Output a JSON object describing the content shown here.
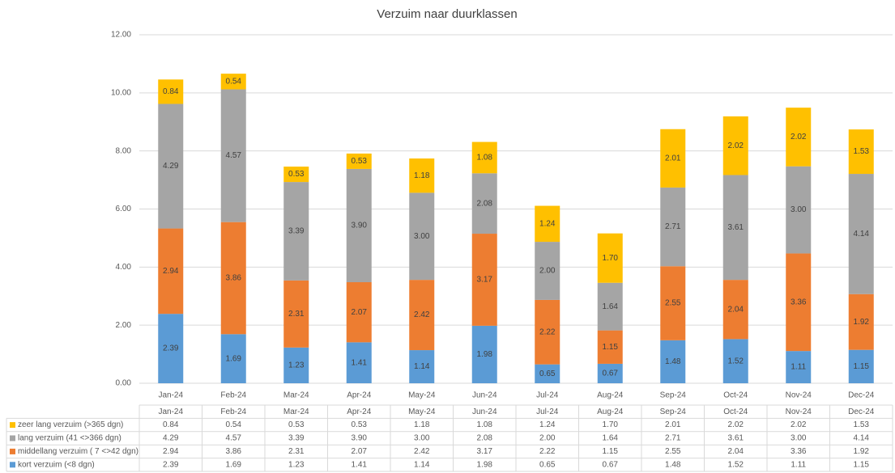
{
  "chart_data": {
    "type": "stacked_bar",
    "title": "Verzuim naar duurklassen",
    "categories": [
      "Jan-24",
      "Feb-24",
      "Mar-24",
      "Apr-24",
      "May-24",
      "Jun-24",
      "Jul-24",
      "Aug-24",
      "Sep-24",
      "Oct-24",
      "Nov-24",
      "Dec-24"
    ],
    "series": [
      {
        "name": "kort verzuim (<8 dgn)",
        "color": "#5b9bd5",
        "values": [
          2.39,
          1.69,
          1.23,
          1.41,
          1.14,
          1.98,
          0.65,
          0.67,
          1.48,
          1.52,
          1.11,
          1.15
        ],
        "value_labels": [
          "2.39",
          "1.69",
          "1.23",
          "1.41",
          "1.14",
          "1.98",
          "0.65",
          "0.67",
          "1.48",
          "1.52",
          "1.11",
          "1.15"
        ]
      },
      {
        "name": "middellang verzuim ( 7 <>42 dgn)",
        "color": "#ed7d31",
        "values": [
          2.94,
          3.86,
          2.31,
          2.07,
          2.42,
          3.17,
          2.22,
          1.15,
          2.55,
          2.04,
          3.36,
          1.92
        ],
        "value_labels": [
          "2.94",
          "3.86",
          "2.31",
          "2.07",
          "2.42",
          "3.17",
          "2.22",
          "1.15",
          "2.55",
          "2.04",
          "3.36",
          "1.92"
        ]
      },
      {
        "name": "lang verzuim (41 <>366 dgn)",
        "color": "#a5a5a5",
        "values": [
          4.29,
          4.57,
          3.39,
          3.9,
          3.0,
          2.08,
          2.0,
          1.64,
          2.71,
          3.61,
          3.0,
          4.14
        ],
        "value_labels": [
          "4.29",
          "4.57",
          "3.39",
          "3.90",
          "3.00",
          "2.08",
          "2.00",
          "1.64",
          "2.71",
          "3.61",
          "3.00",
          "4.14"
        ]
      },
      {
        "name": "zeer lang verzuim (>365 dgn)",
        "color": "#ffc000",
        "values": [
          0.84,
          0.54,
          0.53,
          0.53,
          1.18,
          1.08,
          1.24,
          1.7,
          2.01,
          2.02,
          2.02,
          1.53
        ],
        "value_labels": [
          "0.84",
          "0.54",
          "0.53",
          "0.53",
          "1.18",
          "1.08",
          "1.24",
          "1.70",
          "2.01",
          "2.02",
          "2.02",
          "1.53"
        ]
      }
    ],
    "ylim": [
      0,
      12
    ],
    "yticks": [
      {
        "value": 0,
        "label": "0.00"
      },
      {
        "value": 2,
        "label": "2.00"
      },
      {
        "value": 4,
        "label": "4.00"
      },
      {
        "value": 6,
        "label": "6.00"
      },
      {
        "value": 8,
        "label": "8.00"
      },
      {
        "value": 10,
        "label": "10.00"
      },
      {
        "value": 12,
        "label": "12.00"
      }
    ],
    "grid": true
  }
}
